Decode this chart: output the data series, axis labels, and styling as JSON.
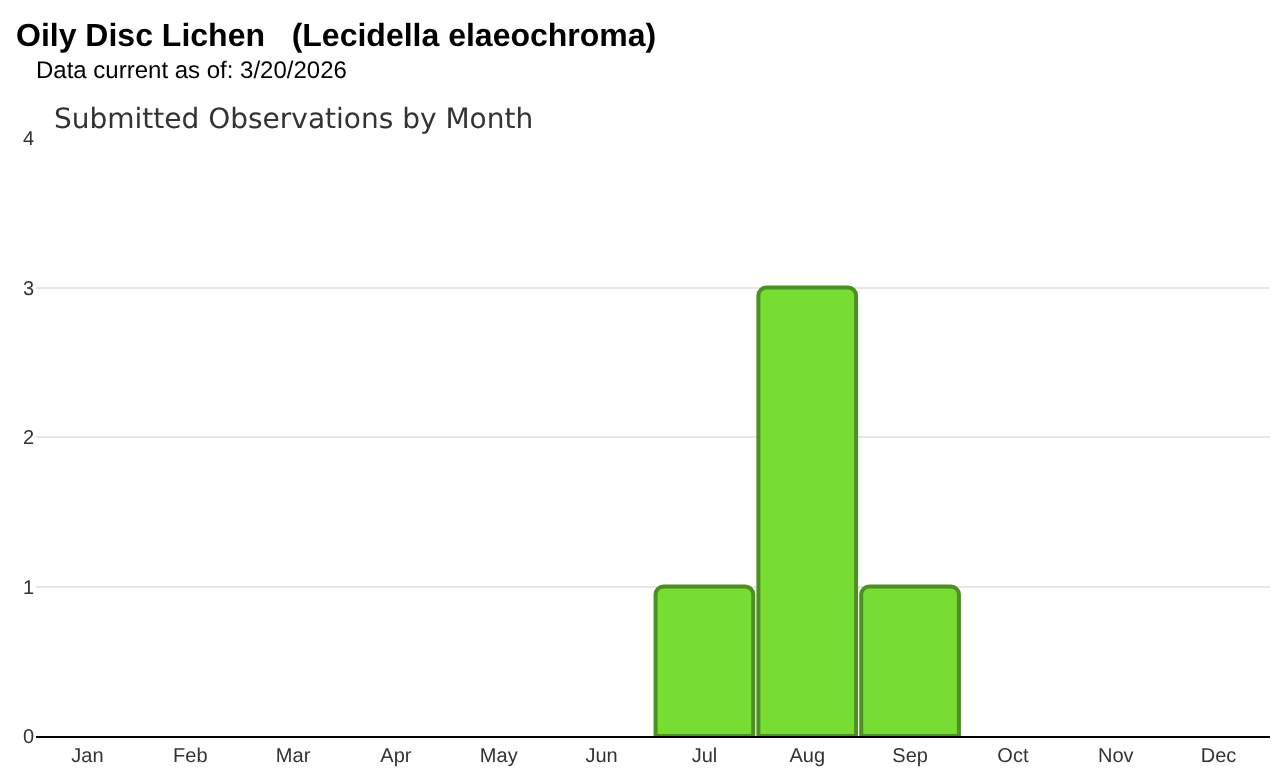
{
  "chart_data": {
    "type": "bar",
    "title": "Oily Disc Lichen   (Lecidella elaeochroma)",
    "subtitle": "Data current as of: 3/20/2026",
    "annotations": [
      "Submitted Observations by Month"
    ],
    "categories": [
      "Jan",
      "Feb",
      "Mar",
      "Apr",
      "May",
      "Jun",
      "Jul",
      "Aug",
      "Sep",
      "Oct",
      "Nov",
      "Dec"
    ],
    "values": [
      0,
      0,
      0,
      0,
      0,
      0,
      1,
      3,
      1,
      0,
      0,
      0
    ],
    "color": "#77dd33",
    "ylim": [
      0,
      4
    ],
    "yticks": [
      0,
      1,
      2,
      3,
      4
    ],
    "grid": "y",
    "legend": false
  }
}
